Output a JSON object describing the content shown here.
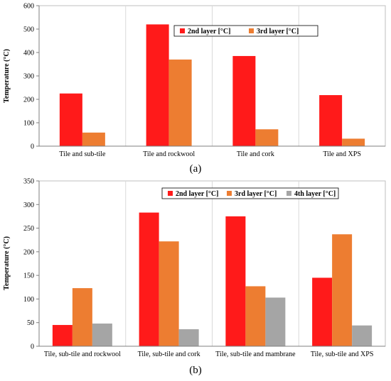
{
  "chart_data": [
    {
      "panel_label": "(a)",
      "type": "bar",
      "ylabel": "Temperature (°C)",
      "ylim": [
        0,
        600
      ],
      "yticks": [
        0,
        100,
        200,
        300,
        400,
        500,
        600
      ],
      "categories": [
        "Tile and sub-tile",
        "Tile and rockwool",
        "Tile and cork",
        "Tile and XPS"
      ],
      "grid": "vertical separators",
      "legend_position": "top-right",
      "series": [
        {
          "name": "2nd layer  [°C]",
          "color": "#ff1a1a",
          "values": [
            225,
            520,
            385,
            218
          ]
        },
        {
          "name": "3rd layer  [°C]",
          "color": "#ed7d31",
          "values": [
            58,
            370,
            72,
            32
          ]
        }
      ]
    },
    {
      "panel_label": "(b)",
      "type": "bar",
      "ylabel": "Temperature (°C)",
      "ylim": [
        0,
        350
      ],
      "yticks": [
        0,
        50,
        100,
        150,
        200,
        250,
        300,
        350
      ],
      "categories": [
        "Tile, sub-tile and rockwool",
        "Tile, sub-tile and cork",
        "Tile, sub-tile and mambrane",
        "Tile, sub-tile and XPS"
      ],
      "grid": "vertical separators",
      "legend_position": "top-right",
      "series": [
        {
          "name": "2nd layer   [°C]",
          "color": "#ff1a1a",
          "values": [
            45,
            283,
            275,
            145
          ]
        },
        {
          "name": "3rd layer  [°C]",
          "color": "#ed7d31",
          "values": [
            123,
            222,
            127,
            237
          ]
        },
        {
          "name": "4th layer  [°C]",
          "color": "#a5a5a5",
          "values": [
            48,
            36,
            103,
            44
          ]
        }
      ]
    }
  ]
}
